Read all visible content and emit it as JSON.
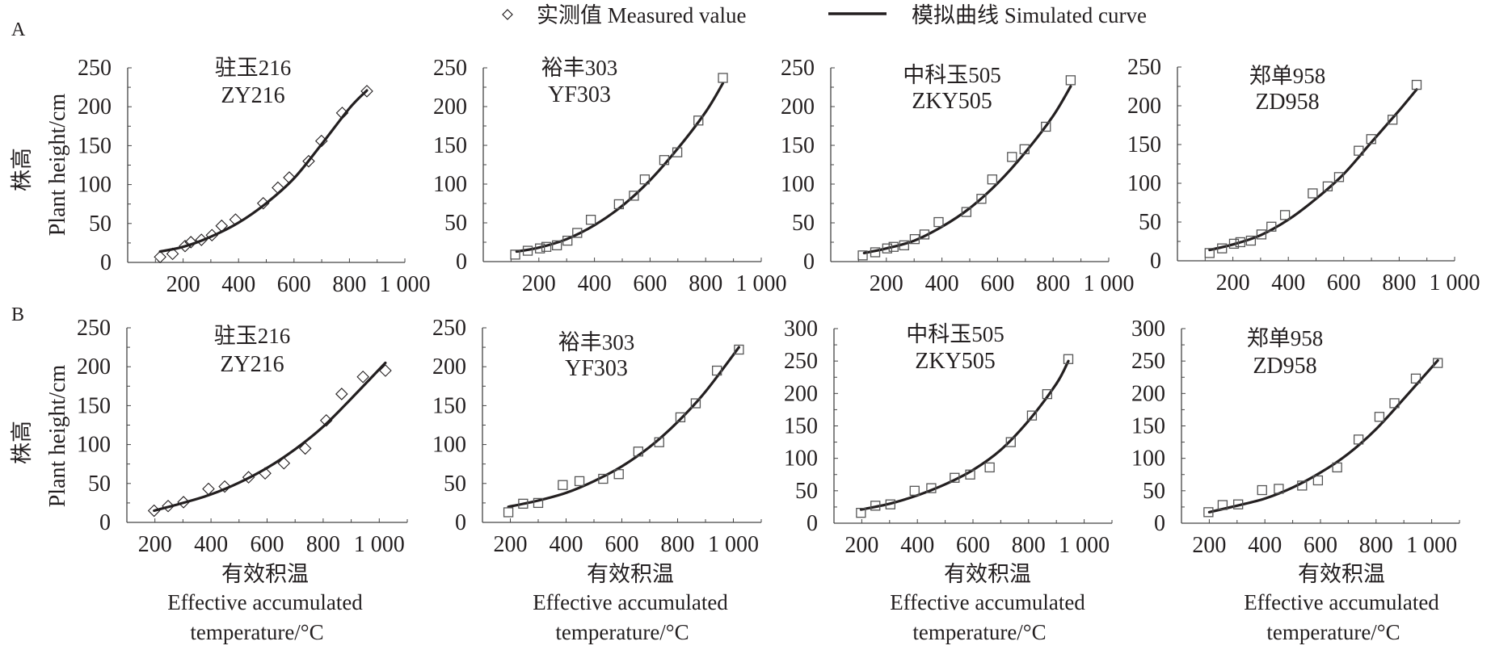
{
  "legend": {
    "measured_label": "实测值 Measured value",
    "simulated_label": "模拟曲线 Simulated curve",
    "marker_color": "#231f20",
    "line_color": "#231f20"
  },
  "shared": {
    "ylabel_cn": "株高",
    "ylabel_en": "Plant height/cm",
    "xlabel_cn": "有效积温",
    "xlabel_en_1": "Effective accumulated",
    "xlabel_en_2": "temperature/°C"
  },
  "rows": [
    {
      "label": "A"
    },
    {
      "label": "B"
    }
  ],
  "chart_data": [
    {
      "type": "scatter",
      "row": "A",
      "marker": "diamond",
      "title_cn": "驻玉216",
      "title_en": "ZY216",
      "xlim": [
        0,
        1000
      ],
      "ylim": [
        0,
        250
      ],
      "xticks": [
        200,
        400,
        600,
        800,
        1000
      ],
      "xtick_labels": [
        "200",
        "400",
        "600",
        "800",
        "1 000"
      ],
      "yticks": [
        0,
        50,
        100,
        150,
        200,
        250
      ],
      "ytick_labels": [
        "0",
        "50",
        "100",
        "150",
        "200",
        "250"
      ],
      "measured": {
        "x": [
          117,
          162,
          207,
          228,
          266,
          304,
          339,
          389,
          489,
          542,
          583,
          653,
          699,
          774,
          863
        ],
        "y": [
          7,
          11,
          21,
          26,
          29,
          35,
          47,
          55,
          76,
          96,
          109,
          130,
          156,
          192,
          220
        ]
      },
      "simulated": {
        "x": [
          117,
          200,
          300,
          400,
          500,
          600,
          700,
          800,
          863
        ],
        "y": [
          14,
          20,
          33,
          51,
          76,
          108,
          152,
          198,
          221
        ]
      }
    },
    {
      "type": "scatter",
      "row": "A",
      "marker": "square",
      "title_cn": "裕丰303",
      "title_en": "YF303",
      "xlim": [
        0,
        1000
      ],
      "ylim": [
        0,
        250
      ],
      "xticks": [
        200,
        400,
        600,
        800,
        1000
      ],
      "xtick_labels": [
        "200",
        "400",
        "600",
        "800",
        "1 000"
      ],
      "yticks": [
        0,
        50,
        100,
        150,
        200,
        250
      ],
      "ytick_labels": [
        "0",
        "50",
        "100",
        "150",
        "200",
        "250"
      ],
      "measured": {
        "x": [
          115,
          160,
          204,
          227,
          265,
          303,
          338,
          387,
          488,
          542,
          581,
          651,
          698,
          774,
          862
        ],
        "y": [
          9,
          14,
          17,
          19,
          21,
          27,
          37,
          54,
          74,
          85,
          106,
          131,
          141,
          182,
          237
        ]
      },
      "simulated": {
        "x": [
          120,
          200,
          300,
          400,
          500,
          600,
          700,
          800,
          862
        ],
        "y": [
          13,
          18,
          29,
          47,
          72,
          105,
          146,
          193,
          230
        ]
      }
    },
    {
      "type": "scatter",
      "row": "A",
      "marker": "square",
      "title_cn": "中科玉505",
      "title_en": "ZKY505",
      "xlim": [
        0,
        1000
      ],
      "ylim": [
        0,
        250
      ],
      "xticks": [
        200,
        400,
        600,
        800,
        1000
      ],
      "xtick_labels": [
        "200",
        "400",
        "600",
        "800",
        "1 000"
      ],
      "yticks": [
        0,
        50,
        100,
        150,
        200,
        250
      ],
      "ytick_labels": [
        "0",
        "50",
        "100",
        "150",
        "200",
        "250"
      ],
      "measured": {
        "x": [
          115,
          160,
          203,
          226,
          264,
          302,
          337,
          388,
          488,
          542,
          581,
          652,
          697,
          774,
          863
        ],
        "y": [
          8,
          12,
          17,
          19,
          21,
          29,
          35,
          51,
          64,
          81,
          106,
          135,
          145,
          174,
          234
        ]
      },
      "simulated": {
        "x": [
          120,
          200,
          300,
          400,
          500,
          600,
          700,
          800,
          863
        ],
        "y": [
          11,
          17,
          27,
          45,
          69,
          101,
          141,
          188,
          226
        ]
      }
    },
    {
      "type": "scatter",
      "row": "A",
      "marker": "square",
      "title_cn": "郑单958",
      "title_en": "ZD958",
      "xlim": [
        0,
        1000
      ],
      "ylim": [
        0,
        250
      ],
      "xticks": [
        200,
        400,
        600,
        800,
        1000
      ],
      "xtick_labels": [
        "200",
        "400",
        "600",
        "800",
        "1 000"
      ],
      "yticks": [
        0,
        50,
        100,
        150,
        200,
        250
      ],
      "ytick_labels": [
        "0",
        "50",
        "100",
        "150",
        "200",
        "250"
      ],
      "measured": {
        "x": [
          116,
          161,
          204,
          227,
          265,
          303,
          339,
          388,
          488,
          542,
          583,
          654,
          699,
          776,
          863
        ],
        "y": [
          10,
          16,
          22,
          24,
          26,
          34,
          44,
          59,
          87,
          96,
          108,
          142,
          157,
          182,
          227
        ]
      },
      "simulated": {
        "x": [
          116,
          200,
          300,
          400,
          500,
          600,
          700,
          800,
          863
        ],
        "y": [
          14,
          21,
          33,
          53,
          80,
          112,
          153,
          194,
          221
        ]
      }
    },
    {
      "type": "scatter",
      "row": "B",
      "marker": "diamond",
      "title_cn": "驻玉216",
      "title_en": "ZY216",
      "xlim": [
        100,
        1100
      ],
      "ylim": [
        0,
        250
      ],
      "xticks": [
        200,
        400,
        600,
        800,
        1000
      ],
      "xtick_labels": [
        "200",
        "400",
        "600",
        "800",
        "1 000"
      ],
      "yticks": [
        0,
        50,
        100,
        150,
        200,
        250
      ],
      "ytick_labels": [
        "0",
        "50",
        "100",
        "150",
        "200",
        "250"
      ],
      "measured": {
        "x": [
          197,
          247,
          302,
          391,
          449,
          534,
          593,
          660,
          736,
          811,
          866,
          942,
          1022
        ],
        "y": [
          15,
          21,
          26,
          43,
          46,
          58,
          63,
          76,
          95,
          131,
          165,
          187,
          195
        ]
      },
      "simulated": {
        "x": [
          197,
          300,
          400,
          500,
          600,
          700,
          800,
          900,
          1022
        ],
        "y": [
          15,
          25,
          36,
          51,
          70,
          94,
          123,
          159,
          205
        ]
      }
    },
    {
      "type": "scatter",
      "row": "B",
      "marker": "square",
      "title_cn": "裕丰303",
      "title_en": "YF303",
      "xlim": [
        100,
        1100
      ],
      "ylim": [
        0,
        250
      ],
      "xticks": [
        200,
        400,
        600,
        800,
        1000
      ],
      "xtick_labels": [
        "200",
        "400",
        "600",
        "800",
        "1 000"
      ],
      "yticks": [
        0,
        50,
        100,
        150,
        200,
        250
      ],
      "ytick_labels": [
        "0",
        "50",
        "100",
        "150",
        "200",
        "250"
      ],
      "measured": {
        "x": [
          193,
          246,
          300,
          388,
          448,
          533,
          589,
          659,
          734,
          810,
          865,
          941,
          1020
        ],
        "y": [
          13,
          24,
          25,
          48,
          53,
          56,
          62,
          91,
          103,
          135,
          153,
          195,
          222
        ]
      },
      "simulated": {
        "x": [
          193,
          300,
          400,
          500,
          600,
          700,
          800,
          900,
          1020
        ],
        "y": [
          20,
          28,
          38,
          53,
          72,
          97,
          129,
          168,
          225
        ]
      }
    },
    {
      "type": "scatter",
      "row": "B",
      "marker": "square",
      "title_cn": "中科玉505",
      "title_en": "ZKY505",
      "xlim": [
        100,
        1100
      ],
      "ylim": [
        0,
        300
      ],
      "xticks": [
        200,
        400,
        600,
        800,
        1000
      ],
      "xtick_labels": [
        "200",
        "400",
        "600",
        "800",
        "1 000"
      ],
      "yticks": [
        0,
        50,
        100,
        150,
        200,
        250,
        300
      ],
      "ytick_labels": [
        "0",
        "50",
        "100",
        "150",
        "200",
        "250",
        "300"
      ],
      "measured": {
        "x": [
          197,
          249,
          303,
          390,
          450,
          534,
          590,
          660,
          736,
          812,
          867,
          943
        ],
        "y": [
          16,
          27,
          29,
          50,
          54,
          70,
          75,
          86,
          125,
          166,
          199,
          253
        ]
      },
      "simulated": {
        "x": [
          197,
          300,
          400,
          500,
          600,
          700,
          800,
          900,
          943
        ],
        "y": [
          21,
          30,
          43,
          60,
          82,
          113,
          158,
          215,
          250
        ]
      }
    },
    {
      "type": "scatter",
      "row": "B",
      "marker": "square",
      "title_cn": "郑单958",
      "title_en": "ZD958",
      "xlim": [
        100,
        1100
      ],
      "ylim": [
        0,
        300
      ],
      "xticks": [
        200,
        400,
        600,
        800,
        1000
      ],
      "xtick_labels": [
        "200",
        "400",
        "600",
        "800",
        "1 000"
      ],
      "yticks": [
        0,
        50,
        100,
        150,
        200,
        250,
        300
      ],
      "ytick_labels": [
        "0",
        "50",
        "100",
        "150",
        "200",
        "250",
        "300"
      ],
      "measured": {
        "x": [
          197,
          248,
          304,
          390,
          450,
          534,
          591,
          660,
          737,
          812,
          866,
          943,
          1022
        ],
        "y": [
          17,
          28,
          29,
          51,
          53,
          58,
          66,
          86,
          129,
          164,
          185,
          223,
          247
        ]
      },
      "simulated": {
        "x": [
          200,
          300,
          400,
          500,
          600,
          700,
          800,
          900,
          1022
        ],
        "y": [
          17,
          27,
          38,
          55,
          78,
          107,
          145,
          192,
          251
        ]
      }
    }
  ]
}
